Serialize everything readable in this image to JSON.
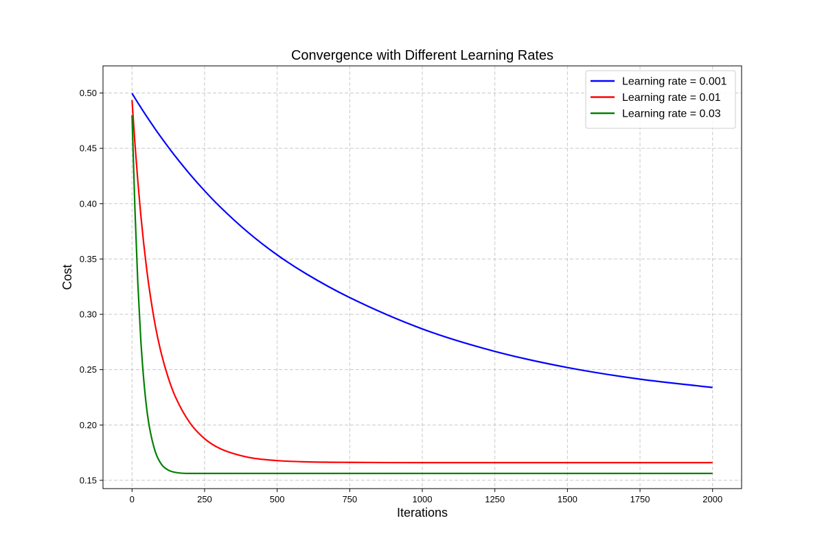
{
  "chart_data": {
    "type": "line",
    "title": "Convergence with Different Learning Rates",
    "xlabel": "Iterations",
    "ylabel": "Cost",
    "xlim": [
      -100,
      2100
    ],
    "ylim": [
      0.1425,
      0.5245
    ],
    "xticks": [
      0,
      250,
      500,
      750,
      1000,
      1250,
      1500,
      1750,
      2000
    ],
    "yticks": [
      0.15,
      0.2,
      0.25,
      0.3,
      0.35,
      0.4,
      0.45,
      0.5
    ],
    "xtick_labels": [
      "0",
      "250",
      "500",
      "750",
      "1000",
      "1250",
      "1500",
      "1750",
      "2000"
    ],
    "ytick_labels": [
      "0.15",
      "0.20",
      "0.25",
      "0.30",
      "0.35",
      "0.40",
      "0.45",
      "0.50"
    ],
    "grid": true,
    "legend_position": "top-right",
    "x": [
      0,
      10,
      20,
      30,
      40,
      50,
      60,
      80,
      100,
      125,
      150,
      200,
      250,
      300,
      400,
      500,
      600,
      750,
      1000,
      1250,
      1500,
      1750,
      2000
    ],
    "series": [
      {
        "name": "Learning rate = 0.001",
        "color": "#0000ff",
        "values": [
          0.4997,
          0.4954,
          0.4912,
          0.4871,
          0.483,
          0.479,
          0.4751,
          0.4674,
          0.46,
          0.4511,
          0.4425,
          0.4264,
          0.4116,
          0.398,
          0.374,
          0.3537,
          0.3366,
          0.3151,
          0.2868,
          0.2665,
          0.2519,
          0.2414,
          0.2339
        ]
      },
      {
        "name": "Learning rate = 0.01",
        "color": "#ff0000",
        "values": [
          0.4936,
          0.4543,
          0.4202,
          0.3904,
          0.3645,
          0.3419,
          0.3222,
          0.29,
          0.2655,
          0.2425,
          0.2251,
          0.2017,
          0.1876,
          0.1791,
          0.1708,
          0.1678,
          0.1667,
          0.1662,
          0.166,
          0.166,
          0.166,
          0.166,
          0.166
        ]
      },
      {
        "name": "Learning rate = 0.03",
        "color": "#008000",
        "values": [
          0.48,
          0.395,
          0.328,
          0.278,
          0.242,
          0.216,
          0.198,
          0.176,
          0.165,
          0.1592,
          0.1571,
          0.1562,
          0.1562,
          0.1562,
          0.1562,
          0.1562,
          0.1562,
          0.1562,
          0.1562,
          0.1562,
          0.1562,
          0.1562,
          0.1562
        ]
      }
    ]
  }
}
